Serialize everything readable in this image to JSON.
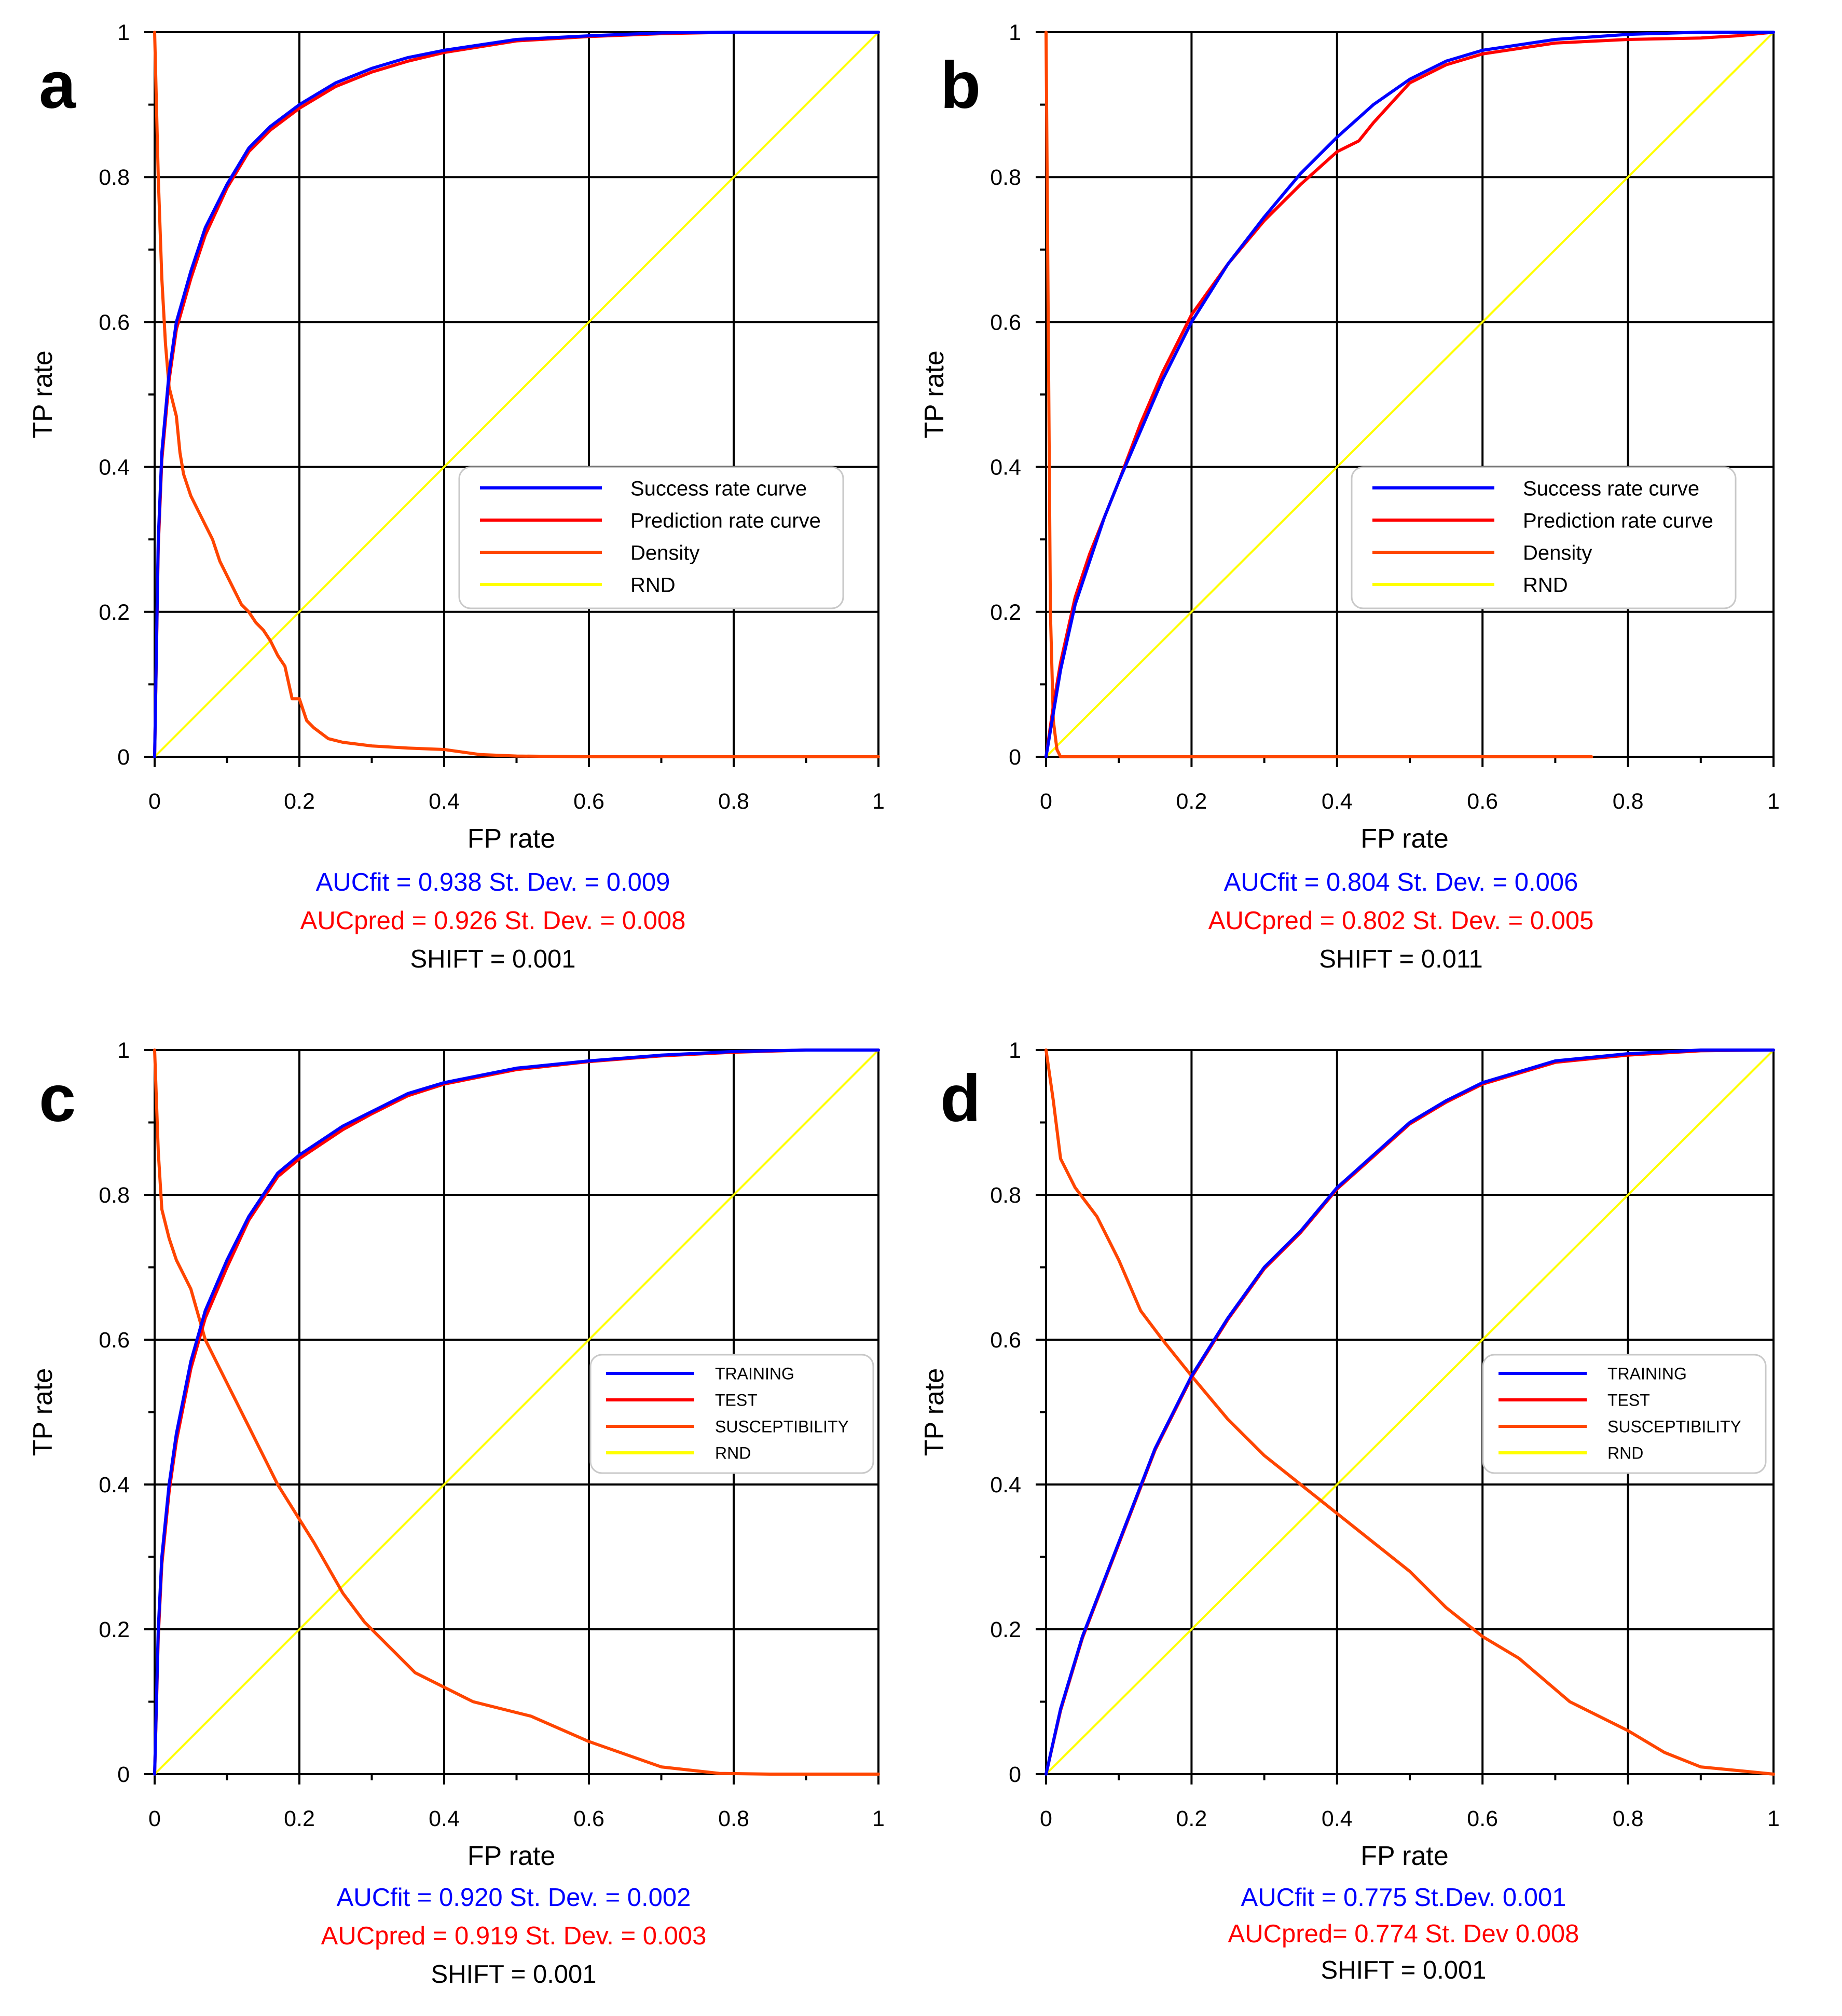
{
  "figure": {
    "panels": [
      {
        "letter": "a",
        "stats": [
          "AUCfit = 0.938 St. Dev. = 0.009",
          "AUCpred = 0.926 St. Dev. = 0.008",
          "SHIFT = 0.001"
        ]
      },
      {
        "letter": "b",
        "stats": [
          "AUCfit = 0.804 St. Dev. = 0.006",
          "AUCpred = 0.802 St. Dev. = 0.005",
          "SHIFT = 0.011"
        ]
      },
      {
        "letter": "c",
        "stats": [
          "AUCfit = 0.920 St. Dev. = 0.002",
          "AUCpred = 0.919 St. Dev. = 0.003",
          "SHIFT = 0.001"
        ]
      },
      {
        "letter": "d",
        "stats": [
          "AUCfit = 0.775  St.Dev. 0.001",
          "AUCpred= 0.774  St. Dev 0.008",
          "SHIFT = 0.001"
        ]
      }
    ]
  },
  "chart_data": [
    {
      "type": "line",
      "panel": "a",
      "title": "",
      "xlabel": "FP rate",
      "ylabel": "TP rate",
      "xlim": [
        0,
        1
      ],
      "ylim": [
        0,
        1
      ],
      "xticks": [
        "0",
        "0.2",
        "0.4",
        "0.6",
        "0.8",
        "1"
      ],
      "yticks": [
        "0",
        "0.2",
        "0.4",
        "0.6",
        "0.8",
        "1"
      ],
      "grid": true,
      "legend_position": "center-right",
      "colors": {
        "success": "#0000ff",
        "prediction": "#ff0000",
        "density": "#ff4500",
        "rnd": "#ffff00"
      },
      "series": [
        {
          "name": "Success rate curve",
          "color": "#0000ff",
          "x": [
            0,
            0.005,
            0.01,
            0.02,
            0.03,
            0.05,
            0.07,
            0.1,
            0.13,
            0.16,
            0.2,
            0.25,
            0.3,
            0.35,
            0.4,
            0.5,
            0.6,
            0.7,
            0.8,
            0.9,
            1
          ],
          "y": [
            0,
            0.3,
            0.42,
            0.53,
            0.6,
            0.67,
            0.73,
            0.79,
            0.84,
            0.87,
            0.9,
            0.93,
            0.95,
            0.965,
            0.975,
            0.99,
            0.995,
            0.999,
            1,
            1,
            1
          ]
        },
        {
          "name": "Prediction rate curve",
          "color": "#ff0000",
          "x": [
            0,
            0.005,
            0.01,
            0.02,
            0.03,
            0.05,
            0.07,
            0.1,
            0.13,
            0.16,
            0.2,
            0.25,
            0.3,
            0.35,
            0.4,
            0.5,
            0.6,
            0.7,
            0.8,
            0.9,
            1
          ],
          "y": [
            0,
            0.29,
            0.41,
            0.52,
            0.59,
            0.66,
            0.72,
            0.785,
            0.835,
            0.865,
            0.895,
            0.925,
            0.945,
            0.96,
            0.972,
            0.988,
            0.994,
            0.998,
            1,
            1,
            1
          ]
        },
        {
          "name": "Density",
          "color": "#ff4500",
          "x": [
            0,
            0.005,
            0.01,
            0.015,
            0.02,
            0.025,
            0.03,
            0.035,
            0.04,
            0.05,
            0.06,
            0.07,
            0.08,
            0.09,
            0.1,
            0.11,
            0.12,
            0.13,
            0.14,
            0.15,
            0.16,
            0.17,
            0.18,
            0.19,
            0.2,
            0.21,
            0.22,
            0.24,
            0.26,
            0.3,
            0.35,
            0.4,
            0.45,
            0.5,
            0.6,
            0.8,
            1
          ],
          "y": [
            1,
            0.8,
            0.66,
            0.57,
            0.51,
            0.49,
            0.47,
            0.42,
            0.39,
            0.36,
            0.34,
            0.32,
            0.3,
            0.27,
            0.25,
            0.23,
            0.21,
            0.2,
            0.185,
            0.175,
            0.16,
            0.14,
            0.125,
            0.08,
            0.08,
            0.05,
            0.04,
            0.025,
            0.02,
            0.015,
            0.012,
            0.01,
            0.003,
            0.001,
            0,
            0,
            0
          ]
        },
        {
          "name": "RND",
          "color": "#ffff00",
          "x": [
            0,
            1
          ],
          "y": [
            0,
            1
          ]
        }
      ],
      "legend": [
        "Success rate curve",
        "Prediction rate curve",
        "Density",
        "RND"
      ]
    },
    {
      "type": "line",
      "panel": "b",
      "title": "",
      "xlabel": "FP rate",
      "ylabel": "TP rate",
      "xlim": [
        0,
        1
      ],
      "ylim": [
        0,
        1
      ],
      "xticks": [
        "0",
        "0.2",
        "0.4",
        "0.6",
        "0.8",
        "1"
      ],
      "yticks": [
        "0",
        "0.2",
        "0.4",
        "0.6",
        "0.8",
        "1"
      ],
      "grid": true,
      "legend_position": "center-right",
      "series": [
        {
          "name": "Success rate curve",
          "color": "#0000ff",
          "x": [
            0,
            0.01,
            0.02,
            0.04,
            0.06,
            0.08,
            0.1,
            0.13,
            0.16,
            0.2,
            0.25,
            0.3,
            0.35,
            0.4,
            0.45,
            0.5,
            0.55,
            0.6,
            0.7,
            0.8,
            0.9,
            1
          ],
          "y": [
            0,
            0.06,
            0.12,
            0.21,
            0.27,
            0.33,
            0.38,
            0.45,
            0.52,
            0.6,
            0.68,
            0.745,
            0.805,
            0.855,
            0.9,
            0.935,
            0.96,
            0.975,
            0.99,
            0.997,
            1,
            1
          ]
        },
        {
          "name": "Prediction rate curve",
          "color": "#ff0000",
          "x": [
            0,
            0.01,
            0.02,
            0.04,
            0.06,
            0.08,
            0.1,
            0.13,
            0.16,
            0.2,
            0.25,
            0.3,
            0.35,
            0.4,
            0.43,
            0.45,
            0.5,
            0.55,
            0.6,
            0.7,
            0.8,
            0.9,
            0.95,
            1
          ],
          "y": [
            0,
            0.07,
            0.13,
            0.22,
            0.28,
            0.33,
            0.38,
            0.46,
            0.53,
            0.61,
            0.68,
            0.74,
            0.79,
            0.835,
            0.85,
            0.875,
            0.93,
            0.955,
            0.97,
            0.985,
            0.99,
            0.992,
            0.995,
            1
          ]
        },
        {
          "name": "Density",
          "color": "#ff4500",
          "x": [
            0,
            0.003,
            0.006,
            0.01,
            0.015,
            0.02,
            0.05,
            0.1,
            0.3,
            0.5,
            0.75
          ],
          "y": [
            1,
            0.6,
            0.2,
            0.05,
            0.01,
            0,
            0,
            0,
            0,
            0,
            0
          ]
        },
        {
          "name": "RND",
          "color": "#ffff00",
          "x": [
            0,
            1
          ],
          "y": [
            0,
            1
          ]
        }
      ],
      "legend": [
        "Success rate curve",
        "Prediction rate curve",
        "Density",
        "RND"
      ]
    },
    {
      "type": "line",
      "panel": "c",
      "title": "",
      "xlabel": "FP rate",
      "ylabel": "TP rate",
      "xlim": [
        0,
        1
      ],
      "ylim": [
        0,
        1
      ],
      "xticks": [
        "0",
        "0.2",
        "0.4",
        "0.6",
        "0.8",
        "1"
      ],
      "yticks": [
        "0",
        "0.2",
        "0.4",
        "0.6",
        "0.8",
        "1"
      ],
      "grid": true,
      "legend_position": "center-right",
      "series": [
        {
          "name": "TRAINING",
          "color": "#0000ff",
          "x": [
            0,
            0.005,
            0.01,
            0.02,
            0.03,
            0.05,
            0.07,
            0.1,
            0.13,
            0.17,
            0.2,
            0.23,
            0.26,
            0.3,
            0.35,
            0.4,
            0.45,
            0.5,
            0.6,
            0.7,
            0.8,
            0.9,
            1
          ],
          "y": [
            0,
            0.2,
            0.3,
            0.4,
            0.47,
            0.57,
            0.64,
            0.71,
            0.77,
            0.83,
            0.855,
            0.875,
            0.895,
            0.915,
            0.94,
            0.955,
            0.965,
            0.975,
            0.985,
            0.993,
            0.998,
            1,
            1
          ]
        },
        {
          "name": "TEST",
          "color": "#ff0000",
          "x": [
            0,
            0.005,
            0.01,
            0.02,
            0.03,
            0.05,
            0.07,
            0.1,
            0.13,
            0.17,
            0.2,
            0.23,
            0.26,
            0.3,
            0.35,
            0.4,
            0.45,
            0.5,
            0.6,
            0.7,
            0.8,
            0.9,
            1
          ],
          "y": [
            0,
            0.19,
            0.29,
            0.39,
            0.46,
            0.56,
            0.63,
            0.7,
            0.765,
            0.825,
            0.85,
            0.87,
            0.89,
            0.912,
            0.937,
            0.953,
            0.963,
            0.973,
            0.984,
            0.992,
            0.997,
            1,
            1
          ]
        },
        {
          "name": "SUSCEPTIBILITY",
          "color": "#ff4500",
          "x": [
            0,
            0.005,
            0.01,
            0.02,
            0.03,
            0.05,
            0.07,
            0.1,
            0.13,
            0.17,
            0.22,
            0.26,
            0.29,
            0.36,
            0.44,
            0.52,
            0.6,
            0.7,
            0.78,
            0.85,
            1
          ],
          "y": [
            1,
            0.86,
            0.78,
            0.74,
            0.71,
            0.67,
            0.6,
            0.54,
            0.48,
            0.4,
            0.32,
            0.25,
            0.21,
            0.14,
            0.1,
            0.08,
            0.045,
            0.01,
            0.001,
            0,
            0
          ]
        },
        {
          "name": "RND",
          "color": "#ffff00",
          "x": [
            0,
            1
          ],
          "y": [
            0,
            1
          ]
        }
      ],
      "legend": [
        "TRAINING",
        "TEST",
        "SUSCEPTIBILITY",
        "RND"
      ]
    },
    {
      "type": "line",
      "panel": "d",
      "title": "",
      "xlabel": "FP rate",
      "ylabel": "TP rate",
      "xlim": [
        0,
        1
      ],
      "ylim": [
        0,
        1
      ],
      "xticks": [
        "0",
        "0.2",
        "0.4",
        "0.6",
        "0.8",
        "1"
      ],
      "yticks": [
        "0",
        "0.2",
        "0.4",
        "0.6",
        "0.8",
        "1"
      ],
      "grid": true,
      "legend_position": "center-right",
      "series": [
        {
          "name": "TRAINING",
          "color": "#0000ff",
          "x": [
            0,
            0.02,
            0.05,
            0.1,
            0.15,
            0.2,
            0.25,
            0.3,
            0.35,
            0.4,
            0.45,
            0.5,
            0.55,
            0.6,
            0.65,
            0.7,
            0.75,
            0.8,
            0.9,
            1
          ],
          "y": [
            0,
            0.09,
            0.19,
            0.32,
            0.45,
            0.55,
            0.63,
            0.7,
            0.75,
            0.81,
            0.855,
            0.9,
            0.93,
            0.955,
            0.97,
            0.985,
            0.99,
            0.995,
            1,
            1
          ]
        },
        {
          "name": "TEST",
          "color": "#ff0000",
          "x": [
            0,
            0.02,
            0.05,
            0.1,
            0.15,
            0.2,
            0.25,
            0.3,
            0.35,
            0.4,
            0.45,
            0.5,
            0.55,
            0.6,
            0.65,
            0.7,
            0.75,
            0.8,
            0.9,
            1
          ],
          "y": [
            0,
            0.088,
            0.188,
            0.318,
            0.448,
            0.548,
            0.628,
            0.698,
            0.748,
            0.808,
            0.853,
            0.898,
            0.928,
            0.953,
            0.968,
            0.983,
            0.988,
            0.993,
            0.999,
            1
          ]
        },
        {
          "name": "SUSCEPTIBILITY",
          "color": "#ff4500",
          "x": [
            0,
            0.01,
            0.02,
            0.04,
            0.07,
            0.1,
            0.13,
            0.16,
            0.2,
            0.25,
            0.3,
            0.35,
            0.4,
            0.45,
            0.5,
            0.55,
            0.6,
            0.65,
            0.72,
            0.8,
            0.85,
            0.9,
            0.95,
            1
          ],
          "y": [
            1,
            0.93,
            0.85,
            0.81,
            0.77,
            0.71,
            0.64,
            0.6,
            0.55,
            0.49,
            0.44,
            0.4,
            0.36,
            0.32,
            0.28,
            0.23,
            0.19,
            0.16,
            0.1,
            0.06,
            0.03,
            0.01,
            0.005,
            0
          ]
        },
        {
          "name": "RND",
          "color": "#ffff00",
          "x": [
            0,
            1
          ],
          "y": [
            0,
            1
          ]
        }
      ],
      "legend": [
        "TRAINING",
        "TEST",
        "SUSCEPTIBILITY",
        "RND"
      ]
    }
  ]
}
